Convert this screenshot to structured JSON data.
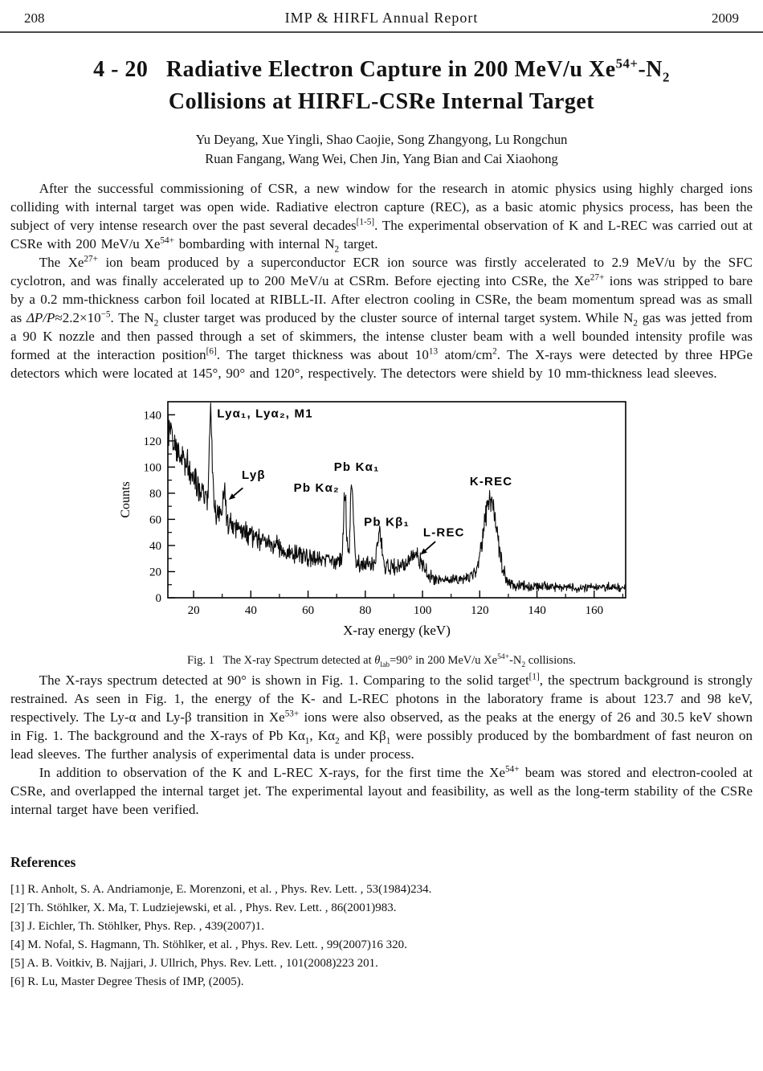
{
  "header": {
    "page_number": "208",
    "journal_title": "IMP & HIRFL Annual Report",
    "year": "2009"
  },
  "article": {
    "title_line1_runs": [
      {
        "t": "4 - 20   Radiative Electron Capture in 200 MeV/u Xe"
      },
      {
        "t": "54+",
        "f": "sup"
      },
      {
        "t": "-N"
      },
      {
        "t": "2",
        "f": "sub"
      }
    ],
    "title_line2": "Collisions at HIRFL-CSRe Internal Target",
    "authors_line1": "Yu Deyang, Xue Yingli, Shao Caojie, Song Zhangyong, Lu Rongchun",
    "authors_line2": "Ruan Fangang, Wang Wei, Chen Jin, Yang Bian and Cai Xiaohong",
    "paragraphs": [
      {
        "runs": [
          {
            "t": "After the successful commissioning of CSR, a new window for the research in atomic physics using highly charged ions colliding with internal target was open wide. Radiative electron capture (REC), as a basic atomic physics process, has been the subject of very intense research over the past several decades"
          },
          {
            "t": "[1-5]",
            "f": "sup"
          },
          {
            "t": ". The experimental observation of K and L-REC was carried out at CSRe with 200 MeV/u Xe"
          },
          {
            "t": "54+",
            "f": "sup"
          },
          {
            "t": " bombarding with internal N"
          },
          {
            "t": "2",
            "f": "sub"
          },
          {
            "t": " target."
          }
        ]
      },
      {
        "runs": [
          {
            "t": "The Xe"
          },
          {
            "t": "27+",
            "f": "sup"
          },
          {
            "t": " ion beam produced by a superconductor ECR ion source was firstly accelerated to 2.9 MeV/u by the SFC cyclotron, and was finally accelerated up to 200 MeV/u at CSRm. Before ejecting into CSRe, the Xe"
          },
          {
            "t": "27+",
            "f": "sup"
          },
          {
            "t": " ions was stripped to bare by a 0.2 mm-thickness carbon foil located at RIBLL-II. After electron cooling in CSRe, the beam momentum spread was as small as "
          },
          {
            "t": "ΔP/P",
            "f": "i"
          },
          {
            "t": "≈2.2×10"
          },
          {
            "t": "−5",
            "f": "sup"
          },
          {
            "t": ". The N"
          },
          {
            "t": "2",
            "f": "sub"
          },
          {
            "t": " cluster target was produced by the cluster source of internal target system. While N"
          },
          {
            "t": "2",
            "f": "sub"
          },
          {
            "t": " gas was jetted from a 90 K nozzle and then passed through a set of skimmers, the intense cluster beam with a well bounded intensity profile was formed at the interaction position"
          },
          {
            "t": "[6]",
            "f": "sup"
          },
          {
            "t": ". The target thickness was about 10"
          },
          {
            "t": "13",
            "f": "sup"
          },
          {
            "t": " atom/cm"
          },
          {
            "t": "2",
            "f": "sup"
          },
          {
            "t": ". The X-rays were detected by three HPGe detectors which were located at 145°, 90° and 120°, respectively. The detectors were shield by 10 mm-thickness lead sleeves."
          }
        ]
      },
      {
        "runs": [
          {
            "t": "The X-rays spectrum detected at 90° is shown in Fig. 1. Comparing to the solid target"
          },
          {
            "t": "[1]",
            "f": "sup"
          },
          {
            "t": ", the spectrum background is strongly restrained. As seen in Fig. 1, the energy of the K- and L-REC photons in the laboratory frame is about 123.7 and 98 keV, respectively. The Ly-α and Ly-β transition in Xe"
          },
          {
            "t": "53+",
            "f": "sup"
          },
          {
            "t": " ions were also observed, as the peaks at the energy of 26 and 30.5 keV shown in Fig. 1. The background and the X-rays of Pb Kα"
          },
          {
            "t": "1",
            "f": "sub"
          },
          {
            "t": ", Kα"
          },
          {
            "t": "2",
            "f": "sub"
          },
          {
            "t": " and Kβ"
          },
          {
            "t": "1",
            "f": "sub"
          },
          {
            "t": " were possibly produced by the bombardment of fast neuron on lead sleeves. The further analysis of experimental data is under process."
          }
        ]
      },
      {
        "runs": [
          {
            "t": "In addition to observation of the K and L-REC X-rays, for the first time the Xe"
          },
          {
            "t": "54+",
            "f": "sup"
          },
          {
            "t": " beam was stored and electron-cooled at CSRe, and overlapped the internal target jet. The experimental layout and feasibility, as well as the long-term stability of the CSRe internal target have been verified."
          }
        ]
      }
    ],
    "figure_caption_runs": [
      {
        "t": "Fig. 1  The X-ray Spectrum detected at "
      },
      {
        "t": "θ",
        "f": "i"
      },
      {
        "t": "lab",
        "f": "sub"
      },
      {
        "t": "=90° in 200 MeV/u Xe"
      },
      {
        "t": "54+",
        "f": "sup"
      },
      {
        "t": "-N"
      },
      {
        "t": "2",
        "f": "sub"
      },
      {
        "t": " collisions."
      }
    ],
    "references_title": "References",
    "references": [
      "[1]  R. Anholt, S. A. Andriamonje, E. Morenzoni, et al. , Phys. Rev. Lett. , 53(1984)234.",
      "[2]  Th. Stöhlker, X. Ma, T. Ludziejewski, et al. , Phys. Rev. Lett. , 86(2001)983.",
      "[3]  J. Eichler, Th. Stöhlker, Phys. Rep. , 439(2007)1.",
      "[4]  M. Nofal, S. Hagmann, Th. Stöhlker, et al. , Phys. Rev. Lett. , 99(2007)16 320.",
      "[5]  A. B. Voitkiv, B. Najjari, J. Ullrich, Phys. Rev. Lett. , 101(2008)223 201.",
      "[6]  R. Lu, Master Degree Thesis of IMP, (2005)."
    ]
  },
  "chart_data": {
    "type": "line",
    "title": "",
    "xlabel": "X-ray energy (keV)",
    "ylabel": "Counts",
    "xlim": [
      11,
      171
    ],
    "ylim": [
      0,
      150
    ],
    "x_ticks": [
      20,
      40,
      60,
      80,
      100,
      120,
      140,
      160
    ],
    "y_ticks": [
      0,
      20,
      40,
      60,
      80,
      100,
      120,
      140
    ],
    "minor_tick_step": 10,
    "grid": false,
    "legend": false,
    "seed": 12,
    "noise_factor": 1.5,
    "line_color": "#0a0a0a",
    "background_anchors": [
      [
        11,
        132
      ],
      [
        14,
        118
      ],
      [
        16,
        108
      ],
      [
        18,
        100
      ],
      [
        20,
        94
      ],
      [
        23,
        82
      ],
      [
        26,
        72
      ],
      [
        30,
        62
      ],
      [
        34,
        56
      ],
      [
        38,
        50
      ],
      [
        42,
        46
      ],
      [
        46,
        42
      ],
      [
        50,
        38
      ],
      [
        55,
        34
      ],
      [
        60,
        31
      ],
      [
        65,
        30
      ],
      [
        70,
        28
      ],
      [
        75,
        27
      ],
      [
        80,
        26
      ],
      [
        85,
        25
      ],
      [
        90,
        23
      ],
      [
        95,
        22
      ],
      [
        99,
        18
      ],
      [
        103,
        14
      ],
      [
        108,
        13
      ],
      [
        113,
        14
      ],
      [
        117,
        16
      ],
      [
        120,
        19
      ],
      [
        124,
        16
      ],
      [
        128,
        13
      ],
      [
        131,
        10
      ],
      [
        135,
        9
      ],
      [
        140,
        9
      ],
      [
        150,
        8
      ],
      [
        160,
        8
      ],
      [
        171,
        8
      ]
    ],
    "peaks": [
      {
        "name": "Ly-alpha1, Ly-alpha2, M1",
        "center": 26,
        "sigma": 0.45,
        "height": 72
      },
      {
        "name": "Ly-beta",
        "center": 30.7,
        "sigma": 0.45,
        "height": 17
      },
      {
        "name": "Pb K-alpha2",
        "center": 72.9,
        "sigma": 0.5,
        "height": 50
      },
      {
        "name": "Pb K-alpha1",
        "center": 75.3,
        "sigma": 0.5,
        "height": 66
      },
      {
        "name": "Pb K-beta1",
        "center": 85.0,
        "sigma": 0.7,
        "height": 27
      },
      {
        "name": "L-REC (98 keV)",
        "center": 97.8,
        "sigma": 2.6,
        "height": 13
      },
      {
        "name": "K-REC (123.7 keV)",
        "center": 123.7,
        "sigma": 2.3,
        "height": 60
      }
    ],
    "annotations": [
      {
        "text": "Lyα₁, Lyα₂, M1",
        "x": 28.2,
        "y": 138,
        "anchor": "start"
      },
      {
        "text": "Lyβ",
        "x": 41,
        "y": 91,
        "anchor": "middle"
      },
      {
        "text": "Pb Kα₂",
        "x": 63,
        "y": 81,
        "anchor": "middle"
      },
      {
        "text": "Pb Kα₁",
        "x": 77,
        "y": 97,
        "anchor": "middle"
      },
      {
        "text": "Pb Kβ₁",
        "x": 87.5,
        "y": 55,
        "anchor": "middle"
      },
      {
        "text": "L-REC",
        "x": 107.5,
        "y": 47,
        "anchor": "middle"
      },
      {
        "text": "K-REC",
        "x": 124,
        "y": 86,
        "anchor": "middle"
      }
    ],
    "arrows": [
      {
        "from": [
          37.2,
          84
        ],
        "to": [
          32.3,
          75
        ]
      },
      {
        "from": [
          104.5,
          43
        ],
        "to": [
          99.3,
          33
        ]
      }
    ]
  }
}
